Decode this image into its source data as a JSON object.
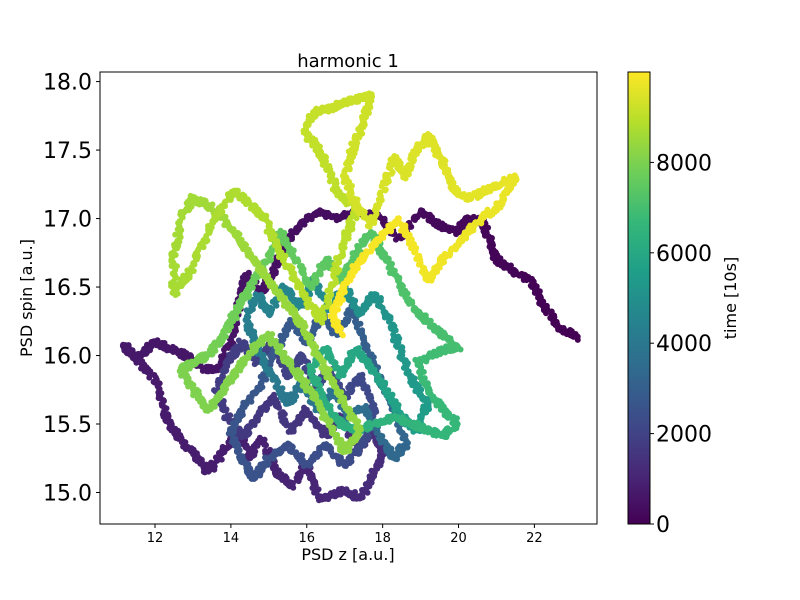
{
  "chart_data": {
    "type": "scatter",
    "title": "harmonic 1",
    "xlabel": "PSD z [a.u.]",
    "ylabel": "PSD spin [a.u.]",
    "xlim": [
      10.55,
      23.65
    ],
    "ylim": [
      14.77,
      18.07
    ],
    "x_ticks": [
      12,
      14,
      16,
      18,
      20,
      22
    ],
    "y_ticks": [
      15.0,
      15.5,
      16.0,
      16.5,
      17.0,
      17.5,
      18.0
    ],
    "y_tick_labels": [
      "15.0",
      "15.5",
      "16.0",
      "16.5",
      "17.0",
      "17.5",
      "18.0"
    ],
    "grid": false,
    "colorbar": {
      "label": "time [10s]",
      "colormap": "viridis",
      "range": [
        0,
        10000
      ],
      "ticks": [
        0,
        2000,
        4000,
        6000,
        8000
      ],
      "colors": [
        "#440154",
        "#482878",
        "#3e4a89",
        "#31688e",
        "#26828e",
        "#1f9e89",
        "#35b779",
        "#6ece58",
        "#b5de2b",
        "#fde725"
      ]
    },
    "segments": [
      {
        "t": [
          0,
          900
        ],
        "points": [
          [
            23.1,
            16.13
          ],
          [
            22.6,
            16.22
          ],
          [
            22.2,
            16.38
          ],
          [
            21.9,
            16.55
          ],
          [
            21.4,
            16.62
          ],
          [
            21.0,
            16.7
          ],
          [
            20.8,
            16.85
          ],
          [
            20.6,
            16.99
          ],
          [
            20.2,
            17.0
          ],
          [
            20.0,
            16.9
          ],
          [
            19.5,
            16.95
          ],
          [
            19.0,
            17.05
          ],
          [
            18.4,
            16.85
          ],
          [
            17.9,
            17.02
          ],
          [
            17.3,
            17.05
          ],
          [
            16.8,
            17.0
          ],
          [
            16.3,
            17.05
          ],
          [
            15.8,
            16.95
          ],
          [
            15.4,
            16.8
          ],
          [
            15.1,
            16.6
          ],
          [
            14.8,
            16.45
          ],
          [
            14.4,
            16.6
          ],
          [
            14.2,
            16.35
          ],
          [
            14.0,
            16.1
          ],
          [
            13.7,
            15.9
          ],
          [
            13.3,
            15.9
          ],
          [
            12.8,
            16.0
          ],
          [
            12.4,
            16.05
          ],
          [
            12.0,
            16.1
          ],
          [
            11.6,
            16.0
          ],
          [
            11.2,
            16.07
          ],
          [
            11.6,
            15.95
          ],
          [
            12.0,
            15.82
          ],
          [
            12.3,
            15.55
          ],
          [
            12.6,
            15.4
          ],
          [
            13.0,
            15.3
          ],
          [
            13.4,
            15.15
          ],
          [
            13.8,
            15.3
          ],
          [
            14.2,
            15.45
          ],
          [
            14.5,
            15.25
          ],
          [
            14.8,
            15.4
          ]
        ]
      },
      {
        "t": [
          900,
          3000
        ],
        "points": [
          [
            14.8,
            15.4
          ],
          [
            15.2,
            15.15
          ],
          [
            15.6,
            15.05
          ],
          [
            16.0,
            15.2
          ],
          [
            16.3,
            14.96
          ],
          [
            16.7,
            14.98
          ],
          [
            17.0,
            15.02
          ],
          [
            17.4,
            14.95
          ],
          [
            17.7,
            15.1
          ],
          [
            18.0,
            15.28
          ],
          [
            17.7,
            15.45
          ],
          [
            17.3,
            15.3
          ],
          [
            16.9,
            15.55
          ],
          [
            16.5,
            15.42
          ],
          [
            16.0,
            15.6
          ],
          [
            15.6,
            15.45
          ],
          [
            15.1,
            15.7
          ],
          [
            14.7,
            15.55
          ],
          [
            14.3,
            15.4
          ],
          [
            13.9,
            15.55
          ],
          [
            13.6,
            15.75
          ],
          [
            13.9,
            15.95
          ],
          [
            14.3,
            16.1
          ],
          [
            14.7,
            15.95
          ],
          [
            15.1,
            16.1
          ],
          [
            15.5,
            15.85
          ],
          [
            15.9,
            16.0
          ],
          [
            16.2,
            15.75
          ],
          [
            16.6,
            15.9
          ],
          [
            17.0,
            15.7
          ],
          [
            17.4,
            15.85
          ],
          [
            17.8,
            15.6
          ],
          [
            17.5,
            15.35
          ],
          [
            17.0,
            15.2
          ],
          [
            16.5,
            15.35
          ],
          [
            16.0,
            15.2
          ],
          [
            15.5,
            15.35
          ],
          [
            15.0,
            15.25
          ],
          [
            14.6,
            15.1
          ],
          [
            14.3,
            15.25
          ],
          [
            14.0,
            15.45
          ],
          [
            14.4,
            15.65
          ],
          [
            14.8,
            15.8
          ],
          [
            15.2,
            16.05
          ],
          [
            15.6,
            16.25
          ],
          [
            16.0,
            16.1
          ],
          [
            16.4,
            16.3
          ],
          [
            16.8,
            16.15
          ],
          [
            17.2,
            16.35
          ],
          [
            17.5,
            16.1
          ]
        ]
      },
      {
        "t": [
          3000,
          6200
        ],
        "points": [
          [
            17.5,
            16.1
          ],
          [
            17.9,
            15.85
          ],
          [
            18.3,
            15.6
          ],
          [
            18.6,
            15.35
          ],
          [
            18.3,
            15.25
          ],
          [
            17.9,
            15.42
          ],
          [
            17.5,
            15.62
          ],
          [
            17.1,
            15.55
          ],
          [
            16.7,
            15.75
          ],
          [
            16.3,
            15.6
          ],
          [
            15.9,
            15.8
          ],
          [
            15.5,
            15.65
          ],
          [
            15.1,
            15.85
          ],
          [
            14.7,
            16.05
          ],
          [
            14.4,
            16.25
          ],
          [
            14.7,
            16.45
          ],
          [
            15.0,
            16.3
          ],
          [
            15.4,
            16.5
          ],
          [
            15.8,
            16.35
          ],
          [
            16.2,
            16.55
          ],
          [
            16.6,
            16.35
          ],
          [
            17.0,
            16.5
          ],
          [
            17.4,
            16.3
          ],
          [
            17.8,
            16.45
          ],
          [
            18.2,
            16.25
          ],
          [
            18.5,
            16.0
          ],
          [
            18.8,
            15.8
          ],
          [
            19.2,
            15.65
          ],
          [
            18.9,
            15.45
          ],
          [
            18.5,
            15.55
          ],
          [
            18.1,
            15.75
          ],
          [
            17.7,
            15.9
          ],
          [
            17.3,
            16.05
          ],
          [
            16.9,
            15.85
          ],
          [
            16.5,
            16.05
          ],
          [
            16.1,
            15.9
          ]
        ]
      },
      {
        "t": [
          6200,
          8000
        ],
        "points": [
          [
            16.1,
            15.9
          ],
          [
            16.5,
            15.65
          ],
          [
            16.9,
            15.5
          ],
          [
            17.3,
            15.45
          ],
          [
            17.8,
            15.5
          ],
          [
            18.3,
            15.55
          ],
          [
            18.8,
            15.5
          ],
          [
            19.2,
            15.45
          ],
          [
            19.6,
            15.42
          ],
          [
            20.0,
            15.5
          ],
          [
            19.6,
            15.6
          ],
          [
            19.2,
            15.75
          ],
          [
            18.9,
            15.95
          ],
          [
            19.3,
            16.0
          ],
          [
            19.7,
            16.05
          ],
          [
            20.0,
            16.05
          ],
          [
            19.6,
            16.15
          ],
          [
            19.2,
            16.25
          ],
          [
            18.8,
            16.35
          ],
          [
            18.4,
            16.55
          ],
          [
            18.0,
            16.75
          ],
          [
            17.7,
            16.9
          ],
          [
            17.3,
            16.75
          ],
          [
            16.9,
            16.55
          ],
          [
            16.5,
            16.7
          ],
          [
            16.1,
            16.5
          ],
          [
            15.7,
            16.7
          ],
          [
            15.3,
            16.9
          ],
          [
            15.0,
            16.7
          ],
          [
            14.6,
            16.55
          ],
          [
            14.3,
            16.4
          ],
          [
            14.0,
            16.25
          ],
          [
            13.7,
            16.1
          ],
          [
            13.4,
            16.0
          ],
          [
            13.0,
            15.95
          ],
          [
            12.7,
            15.9
          ]
        ]
      },
      {
        "t": [
          8000,
          9000
        ],
        "points": [
          [
            12.7,
            15.9
          ],
          [
            13.0,
            15.75
          ],
          [
            13.4,
            15.6
          ],
          [
            13.8,
            15.75
          ],
          [
            14.2,
            15.9
          ],
          [
            14.6,
            16.05
          ],
          [
            15.0,
            16.15
          ],
          [
            15.4,
            16.0
          ],
          [
            15.8,
            15.85
          ],
          [
            16.2,
            15.7
          ],
          [
            16.6,
            15.5
          ],
          [
            17.0,
            15.3
          ],
          [
            17.4,
            15.45
          ],
          [
            17.0,
            15.65
          ],
          [
            16.6,
            15.85
          ],
          [
            16.2,
            16.05
          ],
          [
            15.8,
            16.25
          ],
          [
            15.4,
            16.4
          ],
          [
            15.0,
            16.55
          ],
          [
            14.6,
            16.7
          ],
          [
            14.2,
            16.85
          ],
          [
            13.8,
            17.0
          ],
          [
            13.4,
            17.1
          ],
          [
            13.0,
            17.15
          ],
          [
            12.7,
            17.0
          ],
          [
            12.5,
            16.75
          ],
          [
            12.5,
            16.45
          ],
          [
            12.9,
            16.6
          ],
          [
            13.3,
            16.85
          ],
          [
            13.7,
            17.05
          ],
          [
            14.1,
            17.2
          ],
          [
            14.5,
            17.1
          ],
          [
            14.9,
            17.0
          ],
          [
            15.2,
            16.8
          ],
          [
            15.6,
            16.6
          ],
          [
            16.0,
            16.4
          ],
          [
            16.4,
            16.25
          ],
          [
            16.7,
            16.55
          ],
          [
            17.0,
            16.85
          ],
          [
            17.3,
            17.05
          ]
        ]
      },
      {
        "t": [
          9000,
          10000
        ],
        "points": [
          [
            17.3,
            17.05
          ],
          [
            16.8,
            17.2
          ],
          [
            16.5,
            17.4
          ],
          [
            16.2,
            17.55
          ],
          [
            15.9,
            17.65
          ],
          [
            16.2,
            17.78
          ],
          [
            16.6,
            17.8
          ],
          [
            17.0,
            17.85
          ],
          [
            17.4,
            17.88
          ],
          [
            17.7,
            17.9
          ],
          [
            17.5,
            17.7
          ],
          [
            17.2,
            17.5
          ],
          [
            17.0,
            17.3
          ],
          [
            17.3,
            17.1
          ],
          [
            17.7,
            16.95
          ],
          [
            18.0,
            17.2
          ],
          [
            18.3,
            17.45
          ],
          [
            18.6,
            17.3
          ],
          [
            18.9,
            17.5
          ],
          [
            19.2,
            17.6
          ],
          [
            19.6,
            17.4
          ],
          [
            19.9,
            17.2
          ],
          [
            20.3,
            17.15
          ],
          [
            20.7,
            17.2
          ],
          [
            21.1,
            17.25
          ],
          [
            21.5,
            17.3
          ],
          [
            21.1,
            17.1
          ],
          [
            20.6,
            17.0
          ],
          [
            20.1,
            16.85
          ],
          [
            19.6,
            16.7
          ],
          [
            19.2,
            16.55
          ],
          [
            18.8,
            16.8
          ],
          [
            18.4,
            17.0
          ],
          [
            17.9,
            16.85
          ],
          [
            17.4,
            16.7
          ],
          [
            17.0,
            16.5
          ],
          [
            16.7,
            16.3
          ],
          [
            16.9,
            16.15
          ]
        ]
      }
    ]
  }
}
